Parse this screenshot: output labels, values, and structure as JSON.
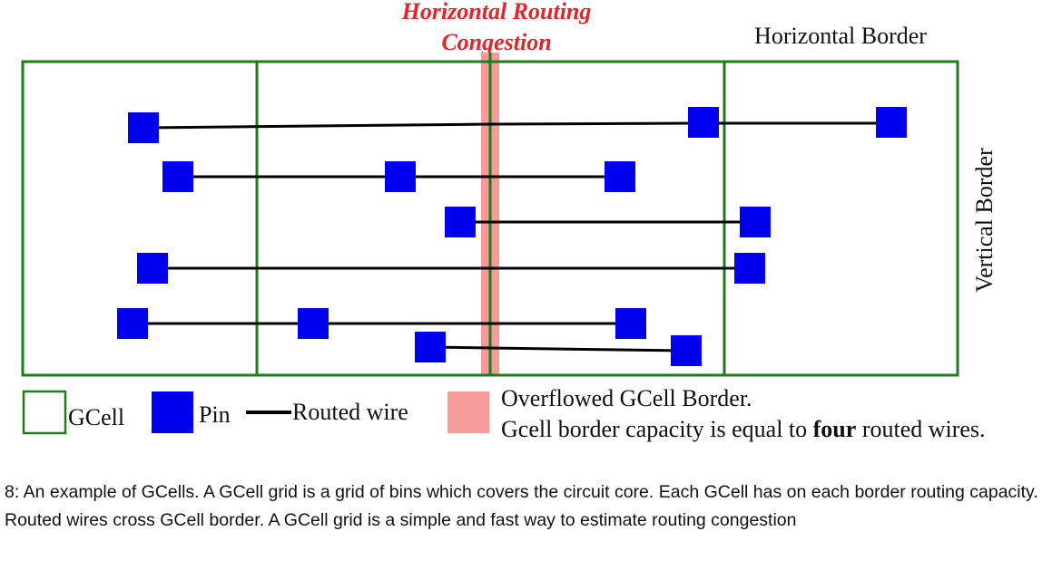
{
  "colors": {
    "gcell_border": "#1e7b1e",
    "pin": "#0000ee",
    "wire": "#000000",
    "overflow": "#f79a9a",
    "congestion_text": "#e3242b"
  },
  "labels": {
    "congestion_line1": "Horizontal Routing",
    "congestion_line2": "Congestion",
    "horizontal_border": "Horizontal Border",
    "vertical_border": "Vertical Border"
  },
  "legend": {
    "gcell": "GCell",
    "pin": "Pin",
    "wire": "Routed wire",
    "overflow_line1": "Overflowed GCell Border.",
    "overflow_line2_prefix": "Gcell border capacity is equal to ",
    "overflow_line2_bold": "four",
    "overflow_line2_suffix": " routed wires."
  },
  "caption": "8: An example of GCells. A GCell grid is a grid of bins which covers the circuit core. Each GCell has on each border routing capacity. Routed wires cross GCell border. A GCell grid is a simple and fast way to estimate routing congestion"
}
